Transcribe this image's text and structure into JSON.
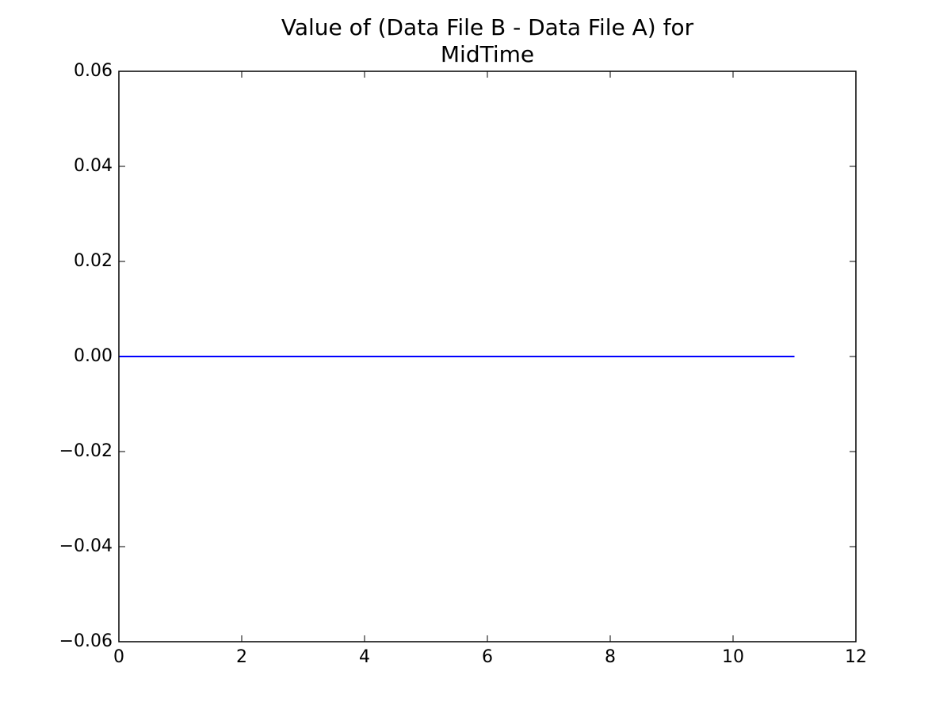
{
  "chart_data": {
    "type": "line",
    "title": [
      "Value of (Data File B - Data File A) for",
      "MidTime"
    ],
    "x": [
      0,
      1,
      2,
      3,
      4,
      5,
      6,
      7,
      8,
      9,
      10,
      11
    ],
    "series": [
      {
        "color": "#0000ff",
        "values": [
          0,
          0,
          0,
          0,
          0,
          0,
          0,
          0,
          0,
          0,
          0,
          0
        ]
      }
    ],
    "xlim": [
      0,
      12
    ],
    "xticks": [
      0,
      2,
      4,
      6,
      8,
      10,
      12
    ],
    "ylim": [
      -0.06,
      0.06
    ],
    "yticks": [
      {
        "value": -0.06,
        "label": "−0.06"
      },
      {
        "value": -0.04,
        "label": "−0.04"
      },
      {
        "value": -0.02,
        "label": "−0.02"
      },
      {
        "value": 0,
        "label": "0.00"
      },
      0.02,
      0.04,
      0.06
    ],
    "grid": false
  }
}
